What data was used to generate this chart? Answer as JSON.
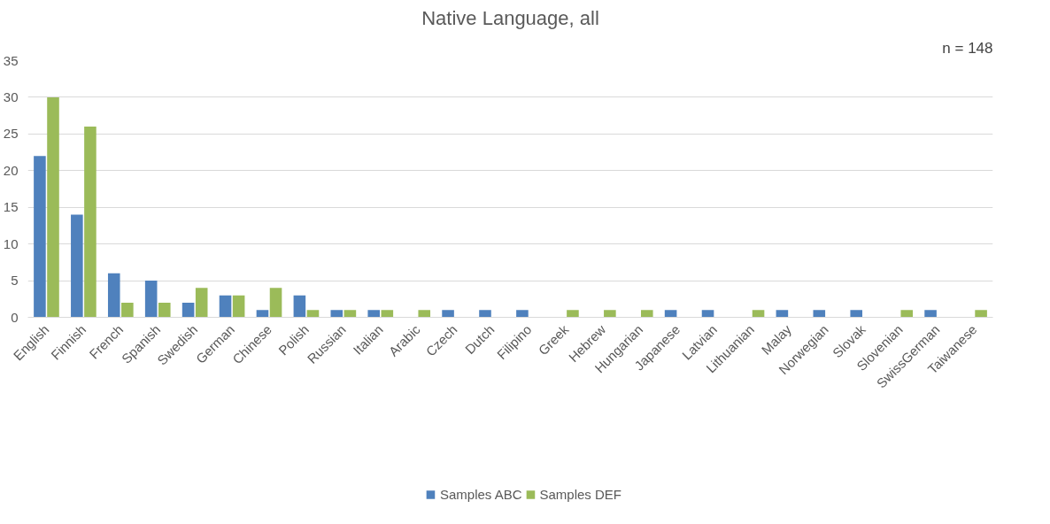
{
  "chart_data": {
    "type": "bar",
    "title": "Native Language, all",
    "annotations": [
      "n = 148"
    ],
    "categories": [
      "English",
      "Finnish",
      "French",
      "Spanish",
      "Swedish",
      "German",
      "Chinese",
      "Polish",
      "Russian",
      "Italian",
      "Arabic",
      "Czech",
      "Dutch",
      "Filipino",
      "Greek",
      "Hebrew",
      "Hungarian",
      "Japanese",
      "Latvian",
      "Lithuanian",
      "Malay",
      "Norwegian",
      "Slovak",
      "Slovenian",
      "SwissGerman",
      "Taiwanese"
    ],
    "series": [
      {
        "name": "Samples ABC",
        "color": "#4f81bd",
        "values": [
          22,
          14,
          6,
          5,
          2,
          3,
          1,
          3,
          1,
          1,
          0,
          1,
          1,
          1,
          0,
          0,
          0,
          1,
          1,
          0,
          1,
          1,
          1,
          0,
          1,
          0
        ]
      },
      {
        "name": "Samples DEF",
        "color": "#9bbb59",
        "values": [
          30,
          26,
          2,
          2,
          4,
          3,
          4,
          1,
          1,
          1,
          1,
          0,
          0,
          0,
          1,
          1,
          1,
          0,
          0,
          1,
          0,
          0,
          0,
          1,
          0,
          1
        ]
      }
    ],
    "ylim": [
      0,
      35
    ],
    "yticks": [
      0,
      5,
      10,
      15,
      20,
      25,
      30,
      35
    ],
    "grid": "y",
    "legend": "bottom"
  }
}
